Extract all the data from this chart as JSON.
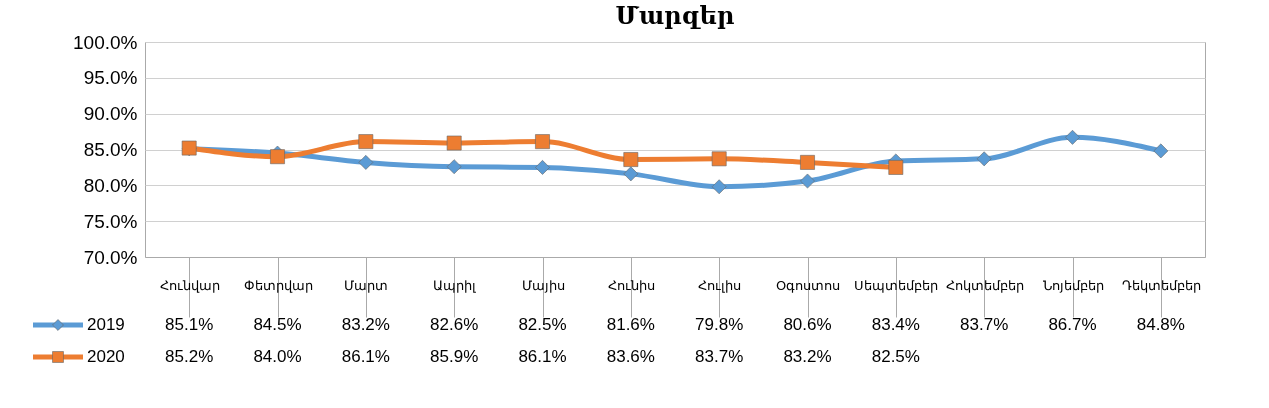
{
  "chart_data": {
    "type": "line",
    "title": "Մարզեր",
    "categories": [
      "Հունվար",
      "Փետրվար",
      "Մարտ",
      "Ապրիլ",
      "Մայիս",
      "Հունիս",
      "Հուլիս",
      "Օգոստոս",
      "Սեպտեմբեր",
      "Հոկտեմբեր",
      "Նոյեմբեր",
      "Դեկտեմբեր"
    ],
    "series": [
      {
        "name": "2019",
        "color": "#5b9bd5",
        "marker": "diamond",
        "values": [
          85.1,
          84.5,
          83.2,
          82.6,
          82.5,
          81.6,
          79.8,
          80.6,
          83.4,
          83.7,
          86.7,
          84.8
        ],
        "value_labels": [
          "85.1%",
          "84.5%",
          "83.2%",
          "82.6%",
          "82.5%",
          "81.6%",
          "79.8%",
          "80.6%",
          "83.4%",
          "83.7%",
          "86.7%",
          "84.8%"
        ]
      },
      {
        "name": "2020",
        "color": "#ed7d31",
        "marker": "square",
        "values": [
          85.2,
          84.0,
          86.1,
          85.9,
          86.1,
          83.6,
          83.7,
          83.2,
          82.5,
          null,
          null,
          null
        ],
        "value_labels": [
          "85.2%",
          "84.0%",
          "86.1%",
          "85.9%",
          "86.1%",
          "83.6%",
          "83.7%",
          "83.2%",
          "82.5%",
          null,
          null,
          null
        ]
      }
    ],
    "ylim": [
      70,
      100
    ],
    "yticks": [
      {
        "value": 70,
        "label": "70.0%"
      },
      {
        "value": 75,
        "label": "75.0%"
      },
      {
        "value": 80,
        "label": "80.0%"
      },
      {
        "value": 85,
        "label": "85.0%"
      },
      {
        "value": 90,
        "label": "90.0%"
      },
      {
        "value": 95,
        "label": "95.0%"
      },
      {
        "value": 100,
        "label": "100.0%"
      }
    ],
    "grid": "y",
    "legend": "bottom left"
  }
}
